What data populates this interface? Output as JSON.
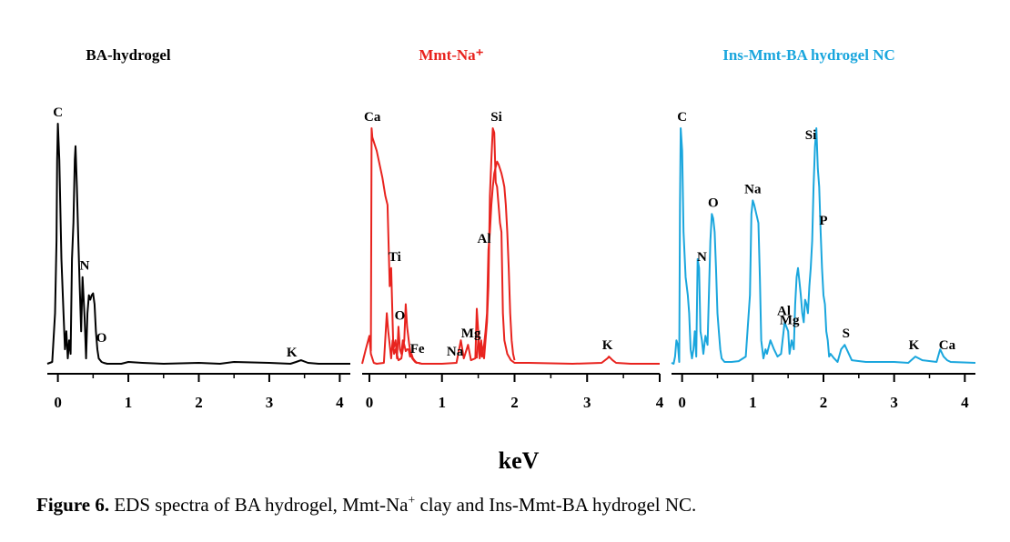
{
  "chart_data": {
    "type": "line",
    "xlabel": "keV",
    "x_ticks": [
      0,
      1,
      2,
      3,
      4
    ],
    "panels": [
      {
        "title": "BA-hydrogel",
        "color": "#000000",
        "xlim": [
          -0.15,
          4.15
        ],
        "series": [
          {
            "x": [
              -0.15,
              -0.08,
              -0.04,
              -0.02,
              -0.01,
              0.0,
              0.02,
              0.05,
              0.08,
              0.1,
              0.12,
              0.14,
              0.16,
              0.18,
              0.2,
              0.22,
              0.24,
              0.25,
              0.27,
              0.29,
              0.31,
              0.33,
              0.35,
              0.38,
              0.4,
              0.42,
              0.44,
              0.46,
              0.48,
              0.5,
              0.52,
              0.54,
              0.56,
              0.58,
              0.6,
              0.62,
              0.65,
              0.7,
              0.8,
              0.9,
              1.0,
              1.2,
              1.5,
              2.0,
              2.3,
              2.5,
              3.0,
              3.3,
              3.38,
              3.45,
              3.55,
              3.7,
              4.15
            ],
            "y": [
              4,
              6,
              60,
              140,
              230,
              270,
              230,
              120,
              60,
              20,
              40,
              10,
              30,
              15,
              120,
              160,
              230,
              245,
              200,
              140,
              90,
              40,
              100,
              55,
              10,
              60,
              80,
              75,
              80,
              82,
              70,
              40,
              20,
              10,
              8,
              6,
              5,
              4,
              4,
              4,
              6,
              5,
              4,
              5,
              4,
              6,
              5,
              4,
              6,
              8,
              5,
              4,
              4
            ]
          }
        ],
        "peak_labels": [
          {
            "text": "C",
            "x": 0.0
          },
          {
            "text": "N",
            "x": 0.38
          },
          {
            "text": "O",
            "x": 0.62
          },
          {
            "text": "K",
            "x": 3.32
          }
        ]
      },
      {
        "title": "Mmt-Na⁺",
        "color": "#e8231e",
        "xlim": [
          -0.1,
          4.0
        ],
        "series": [
          {
            "x": [
              -0.1,
              -0.05,
              0.0,
              0.02,
              0.04,
              0.06,
              0.1,
              0.2,
              0.24,
              0.26,
              0.3,
              0.32,
              0.34,
              0.36,
              0.4,
              0.44,
              0.48,
              0.5,
              0.52,
              0.55,
              0.57,
              0.59,
              0.61,
              0.63,
              0.65,
              0.68,
              0.72,
              0.8,
              1.0,
              1.2,
              1.26,
              1.28,
              1.3,
              1.32,
              1.36,
              1.4,
              1.46,
              1.48,
              1.5,
              1.52,
              1.54,
              1.56,
              1.58,
              1.62,
              1.64,
              1.66,
              1.68,
              1.7,
              1.72,
              1.74,
              1.76,
              1.78,
              1.8,
              1.82,
              1.84,
              1.86,
              1.9,
              1.95,
              2.0,
              2.2,
              2.8,
              3.2,
              3.28,
              3.3,
              3.35,
              3.4,
              3.6,
              4.0
            ],
            "y": [
              4,
              20,
              35,
              15,
              10,
              5,
              4,
              5,
              60,
              40,
              10,
              30,
              15,
              20,
              8,
              10,
              30,
              70,
              45,
              25,
              15,
              10,
              8,
              6,
              5,
              5,
              4,
              4,
              4,
              5,
              30,
              20,
              10,
              15,
              25,
              8,
              10,
              65,
              40,
              10,
              30,
              15,
              10,
              50,
              90,
              190,
              230,
              265,
              260,
              205,
              200,
              180,
              160,
              150,
              60,
              30,
              15,
              8,
              5,
              5,
              4,
              5,
              10,
              12,
              8,
              5,
              4,
              4
            ]
          },
          {
            "x": [
              0.02,
              0.03,
              0.04,
              0.1,
              0.18,
              0.22,
              0.25,
              0.28,
              0.3,
              0.33,
              0.36,
              0.38,
              0.4,
              0.42,
              0.44,
              0.46,
              0.48,
              0.5,
              0.52,
              0.54,
              0.56,
              0.58,
              0.6,
              0.62,
              0.64,
              0.66,
              0.68,
              0.7
            ],
            "y": [
              18,
              265,
              255,
              240,
              210,
              190,
              180,
              90,
              110,
              20,
              30,
              10,
              45,
              20,
              15,
              30,
              25,
              18,
              20,
              20,
              12,
              15,
              10,
              8,
              6,
              5,
              5,
              4
            ]
          },
          {
            "x": [
              1.48,
              1.5,
              1.55,
              1.58,
              1.6,
              1.62,
              1.64,
              1.66,
              1.68,
              1.7,
              1.72,
              1.74,
              1.76,
              1.78,
              1.8,
              1.82,
              1.84,
              1.86,
              1.88,
              1.9,
              1.92,
              1.94,
              1.96,
              1.98,
              2.0
            ],
            "y": [
              10,
              30,
              12,
              25,
              40,
              60,
              130,
              150,
              180,
              200,
              215,
              222,
              228,
              225,
              220,
              215,
              208,
              200,
              180,
              150,
              110,
              60,
              30,
              15,
              8
            ]
          }
        ],
        "peak_labels": [
          {
            "text": "Ca",
            "x": 0.04
          },
          {
            "text": "O",
            "x": 0.42
          },
          {
            "text": "Ti",
            "x": 0.35
          },
          {
            "text": "Fe",
            "x": 0.66
          },
          {
            "text": "Na",
            "x": 1.18
          },
          {
            "text": "Mg",
            "x": 1.4
          },
          {
            "text": "Al",
            "x": 1.58
          },
          {
            "text": "Si",
            "x": 1.75
          },
          {
            "text": "K",
            "x": 3.28
          }
        ]
      },
      {
        "title": "Ins-Mmt-BA hydrogel NC",
        "color": "#1aa6dd",
        "xlim": [
          -0.15,
          4.15
        ],
        "series": [
          {
            "x": [
              -0.15,
              -0.12,
              -0.1,
              -0.08,
              -0.06,
              -0.05,
              -0.04,
              -0.03,
              -0.02,
              0.0,
              0.02,
              0.05,
              0.08,
              0.1,
              0.12,
              0.14,
              0.16,
              0.18,
              0.2,
              0.22,
              0.24,
              0.26,
              0.28,
              0.3,
              0.33,
              0.36,
              0.4,
              0.42,
              0.44,
              0.46,
              0.48,
              0.5,
              0.52,
              0.54,
              0.56,
              0.58,
              0.6,
              0.7,
              0.8,
              0.9,
              0.96,
              0.98,
              1.0,
              1.02,
              1.05,
              1.08,
              1.1,
              1.12,
              1.15,
              1.18,
              1.2,
              1.25,
              1.3,
              1.35,
              1.4,
              1.45,
              1.5,
              1.52,
              1.55,
              1.58,
              1.6,
              1.62,
              1.64,
              1.66,
              1.68,
              1.7,
              1.72,
              1.74,
              1.76,
              1.78,
              1.8,
              1.82,
              1.84,
              1.86,
              1.88,
              1.9,
              1.92,
              1.94,
              1.96,
              1.98,
              2.0,
              2.02,
              2.04,
              2.06,
              2.08,
              2.1,
              2.15,
              2.2,
              2.25,
              2.3,
              2.4,
              2.6,
              3.0,
              3.2,
              3.3,
              3.4,
              3.6,
              3.65,
              3.7,
              3.75,
              3.8,
              4.15
            ],
            "y": [
              5,
              4,
              12,
              30,
              25,
              15,
              6,
              180,
              265,
              240,
              150,
              100,
              80,
              60,
              20,
              10,
              20,
              40,
              12,
              120,
              110,
              40,
              30,
              15,
              35,
              25,
              140,
              170,
              165,
              150,
              110,
              60,
              40,
              20,
              10,
              8,
              6,
              6,
              7,
              12,
              80,
              170,
              185,
              180,
              170,
              160,
              100,
              30,
              10,
              20,
              15,
              30,
              20,
              12,
              15,
              50,
              40,
              15,
              30,
              20,
              70,
              100,
              110,
              95,
              80,
              60,
              50,
              75,
              70,
              60,
              90,
              110,
              140,
              200,
              245,
              265,
              220,
              200,
              150,
              110,
              80,
              70,
              40,
              30,
              12,
              15,
              10,
              6,
              20,
              25,
              8,
              6,
              6,
              5,
              12,
              8,
              6,
              20,
              12,
              8,
              6,
              5
            ]
          }
        ],
        "peak_labels": [
          {
            "text": "C",
            "x": 0.0
          },
          {
            "text": "N",
            "x": 0.28
          },
          {
            "text": "O",
            "x": 0.44
          },
          {
            "text": "Na",
            "x": 1.0
          },
          {
            "text": "Al",
            "x": 1.44
          },
          {
            "text": "Mg",
            "x": 1.52
          },
          {
            "text": "Si",
            "x": 1.82
          },
          {
            "text": "P",
            "x": 2.0
          },
          {
            "text": "S",
            "x": 2.32
          },
          {
            "text": "K",
            "x": 3.28
          },
          {
            "text": "Ca",
            "x": 3.75
          }
        ]
      }
    ]
  },
  "caption": {
    "label": "Figure 6.",
    "text_before": " EDS spectra of BA hydrogel, Mmt-Na",
    "superscript": "+",
    "text_after": " clay and Ins-Mmt-BA hydrogel NC."
  }
}
